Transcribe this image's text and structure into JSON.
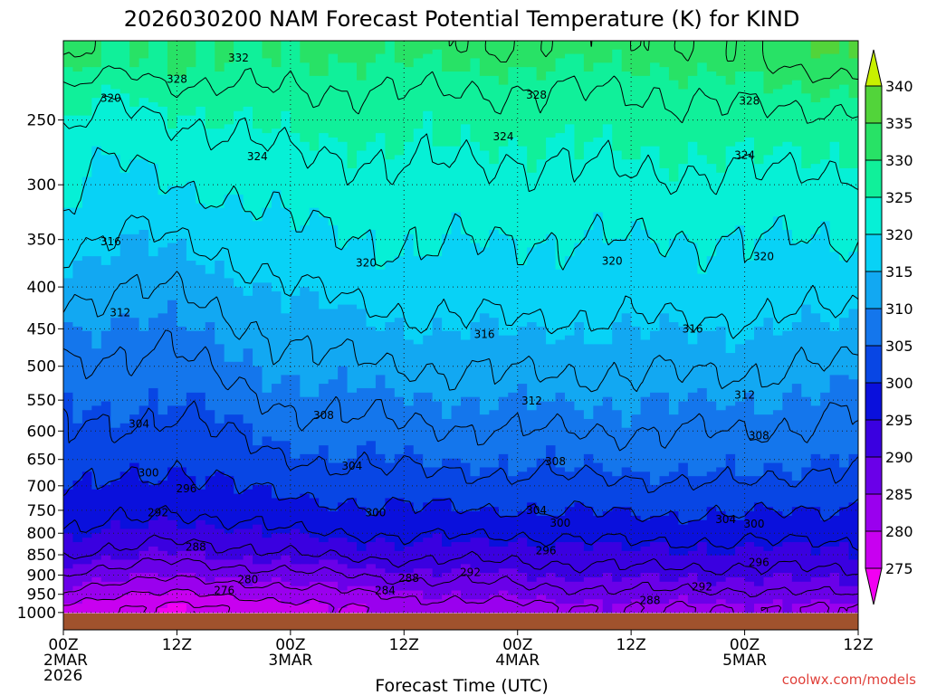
{
  "chart_data": {
    "type": "heatmap",
    "title": "2026030200 NAM Forecast Potential Temperature (K) for KIND",
    "xlabel": "Forecast Time (UTC)",
    "ylabel": "",
    "credit": "coolwx.com/models",
    "x_range_hours": [
      0,
      84
    ],
    "y_range_hpa": [
      200,
      1050
    ],
    "surface_pressure_hpa": 1000,
    "x_ticks": [
      {
        "hour": 0,
        "lines": [
          "00Z",
          "2MAR",
          "2026"
        ]
      },
      {
        "hour": 12,
        "lines": [
          "12Z"
        ]
      },
      {
        "hour": 24,
        "lines": [
          "00Z",
          "3MAR"
        ]
      },
      {
        "hour": 36,
        "lines": [
          "12Z"
        ]
      },
      {
        "hour": 48,
        "lines": [
          "00Z",
          "4MAR"
        ]
      },
      {
        "hour": 60,
        "lines": [
          "12Z"
        ]
      },
      {
        "hour": 72,
        "lines": [
          "00Z",
          "5MAR"
        ]
      },
      {
        "hour": 84,
        "lines": [
          "12Z"
        ]
      }
    ],
    "y_ticks": [
      250,
      300,
      350,
      400,
      450,
      500,
      550,
      600,
      650,
      700,
      750,
      800,
      850,
      900,
      950,
      1000
    ],
    "colorbar": {
      "levels": [
        275,
        280,
        285,
        290,
        295,
        300,
        305,
        310,
        315,
        320,
        325,
        330,
        335,
        340
      ],
      "tick_labels": [
        "275",
        "280",
        "285",
        "290",
        "295",
        "300",
        "305",
        "310",
        "315",
        "320",
        "325",
        "330",
        "335",
        "340"
      ],
      "colors": [
        "#f200f2",
        "#c800f0",
        "#9a00ee",
        "#6a00e8",
        "#3a00e0",
        "#0a10dc",
        "#0846e4",
        "#1476ec",
        "#12a8f2",
        "#08d2f6",
        "#06f0d6",
        "#10f09a",
        "#28e266",
        "#52d43a",
        "#8ae020",
        "#c8f000"
      ]
    },
    "contour_levels": [
      276,
      280,
      284,
      288,
      292,
      296,
      300,
      304,
      308,
      312,
      316,
      320,
      324,
      328,
      332
    ],
    "profiles": [
      {
        "hour": 0,
        "levels": [
          {
            "p": 985,
            "t": 279
          },
          {
            "p": 940,
            "t": 284
          },
          {
            "p": 880,
            "t": 289
          },
          {
            "p": 840,
            "t": 293
          },
          {
            "p": 790,
            "t": 296
          },
          {
            "p": 720,
            "t": 300
          },
          {
            "p": 640,
            "t": 303
          },
          {
            "p": 560,
            "t": 305
          },
          {
            "p": 470,
            "t": 309
          },
          {
            "p": 400,
            "t": 313
          },
          {
            "p": 330,
            "t": 319
          },
          {
            "p": 270,
            "t": 322
          },
          {
            "p": 230,
            "t": 328
          },
          {
            "p": 205,
            "t": 334
          }
        ]
      },
      {
        "hour": 6,
        "levels": [
          {
            "p": 985,
            "t": 276
          },
          {
            "p": 950,
            "t": 280
          },
          {
            "p": 900,
            "t": 286
          },
          {
            "p": 840,
            "t": 292
          },
          {
            "p": 780,
            "t": 296
          },
          {
            "p": 710,
            "t": 299
          },
          {
            "p": 620,
            "t": 303
          },
          {
            "p": 530,
            "t": 306
          },
          {
            "p": 440,
            "t": 310
          },
          {
            "p": 360,
            "t": 315
          },
          {
            "p": 280,
            "t": 320
          },
          {
            "p": 230,
            "t": 325
          },
          {
            "p": 210,
            "t": 330
          }
        ]
      },
      {
        "hour": 12,
        "levels": [
          {
            "p": 985,
            "t": 275
          },
          {
            "p": 955,
            "t": 279
          },
          {
            "p": 900,
            "t": 285
          },
          {
            "p": 840,
            "t": 290
          },
          {
            "p": 770,
            "t": 295
          },
          {
            "p": 690,
            "t": 299
          },
          {
            "p": 620,
            "t": 302
          },
          {
            "p": 530,
            "t": 306
          },
          {
            "p": 440,
            "t": 310
          },
          {
            "p": 370,
            "t": 314
          },
          {
            "p": 300,
            "t": 320
          },
          {
            "p": 250,
            "t": 324
          },
          {
            "p": 215,
            "t": 330
          }
        ]
      },
      {
        "hour": 24,
        "levels": [
          {
            "p": 985,
            "t": 278
          },
          {
            "p": 950,
            "t": 282
          },
          {
            "p": 900,
            "t": 287
          },
          {
            "p": 850,
            "t": 292
          },
          {
            "p": 780,
            "t": 297
          },
          {
            "p": 690,
            "t": 302
          },
          {
            "p": 610,
            "t": 306
          },
          {
            "p": 520,
            "t": 310
          },
          {
            "p": 430,
            "t": 314
          },
          {
            "p": 370,
            "t": 318
          },
          {
            "p": 300,
            "t": 322
          },
          {
            "p": 250,
            "t": 326
          },
          {
            "p": 210,
            "t": 330
          }
        ]
      },
      {
        "hour": 36,
        "levels": [
          {
            "p": 985,
            "t": 282
          },
          {
            "p": 945,
            "t": 285
          },
          {
            "p": 900,
            "t": 289
          },
          {
            "p": 850,
            "t": 293
          },
          {
            "p": 780,
            "t": 298
          },
          {
            "p": 690,
            "t": 303
          },
          {
            "p": 610,
            "t": 307
          },
          {
            "p": 520,
            "t": 311
          },
          {
            "p": 450,
            "t": 315
          },
          {
            "p": 380,
            "t": 319
          },
          {
            "p": 300,
            "t": 323
          },
          {
            "p": 240,
            "t": 327
          },
          {
            "p": 205,
            "t": 331
          }
        ]
      },
      {
        "hour": 48,
        "levels": [
          {
            "p": 985,
            "t": 283
          },
          {
            "p": 940,
            "t": 287
          },
          {
            "p": 880,
            "t": 291
          },
          {
            "p": 820,
            "t": 295
          },
          {
            "p": 750,
            "t": 300
          },
          {
            "p": 660,
            "t": 305
          },
          {
            "p": 580,
            "t": 309
          },
          {
            "p": 490,
            "t": 313
          },
          {
            "p": 420,
            "t": 317
          },
          {
            "p": 350,
            "t": 320
          },
          {
            "p": 280,
            "t": 324
          },
          {
            "p": 230,
            "t": 328
          },
          {
            "p": 205,
            "t": 332
          }
        ]
      },
      {
        "hour": 60,
        "levels": [
          {
            "p": 985,
            "t": 284
          },
          {
            "p": 940,
            "t": 288
          },
          {
            "p": 880,
            "t": 292
          },
          {
            "p": 820,
            "t": 296
          },
          {
            "p": 760,
            "t": 300
          },
          {
            "p": 670,
            "t": 305
          },
          {
            "p": 580,
            "t": 309
          },
          {
            "p": 490,
            "t": 313
          },
          {
            "p": 420,
            "t": 317
          },
          {
            "p": 350,
            "t": 320
          },
          {
            "p": 290,
            "t": 324
          },
          {
            "p": 230,
            "t": 328
          },
          {
            "p": 205,
            "t": 331
          }
        ]
      },
      {
        "hour": 72,
        "levels": [
          {
            "p": 985,
            "t": 284
          },
          {
            "p": 940,
            "t": 288
          },
          {
            "p": 880,
            "t": 292
          },
          {
            "p": 820,
            "t": 296
          },
          {
            "p": 760,
            "t": 300
          },
          {
            "p": 680,
            "t": 305
          },
          {
            "p": 580,
            "t": 309
          },
          {
            "p": 490,
            "t": 313
          },
          {
            "p": 420,
            "t": 317
          },
          {
            "p": 350,
            "t": 320
          },
          {
            "p": 290,
            "t": 324
          },
          {
            "p": 240,
            "t": 328
          },
          {
            "p": 210,
            "t": 332
          }
        ]
      },
      {
        "hour": 84,
        "levels": [
          {
            "p": 985,
            "t": 284
          },
          {
            "p": 940,
            "t": 289
          },
          {
            "p": 870,
            "t": 293
          },
          {
            "p": 800,
            "t": 297
          },
          {
            "p": 720,
            "t": 301
          },
          {
            "p": 620,
            "t": 306
          },
          {
            "p": 530,
            "t": 310
          },
          {
            "p": 440,
            "t": 315
          },
          {
            "p": 370,
            "t": 319
          },
          {
            "p": 300,
            "t": 323
          },
          {
            "p": 250,
            "t": 327
          },
          {
            "p": 220,
            "t": 332
          },
          {
            "p": 205,
            "t": 336
          }
        ]
      }
    ],
    "contour_labels": [
      {
        "text": "332",
        "hour": 18.5,
        "p": 210
      },
      {
        "text": "328",
        "hour": 12.0,
        "p": 223
      },
      {
        "text": "320",
        "hour": 5.0,
        "p": 235
      },
      {
        "text": "324",
        "hour": 20.5,
        "p": 277
      },
      {
        "text": "328",
        "hour": 50.0,
        "p": 233
      },
      {
        "text": "324",
        "hour": 46.5,
        "p": 262
      },
      {
        "text": "328",
        "hour": 72.5,
        "p": 237
      },
      {
        "text": "324",
        "hour": 72.0,
        "p": 276
      },
      {
        "text": "316",
        "hour": 5.0,
        "p": 352
      },
      {
        "text": "320",
        "hour": 32.0,
        "p": 374
      },
      {
        "text": "320",
        "hour": 58.0,
        "p": 372
      },
      {
        "text": "320",
        "hour": 74.0,
        "p": 367
      },
      {
        "text": "312",
        "hour": 6.0,
        "p": 430
      },
      {
        "text": "316",
        "hour": 44.5,
        "p": 457
      },
      {
        "text": "316",
        "hour": 66.5,
        "p": 450
      },
      {
        "text": "312",
        "hour": 49.5,
        "p": 551
      },
      {
        "text": "312",
        "hour": 72.0,
        "p": 542
      },
      {
        "text": "304",
        "hour": 8.0,
        "p": 588
      },
      {
        "text": "308",
        "hour": 27.5,
        "p": 574
      },
      {
        "text": "308",
        "hour": 73.5,
        "p": 608
      },
      {
        "text": "304",
        "hour": 30.5,
        "p": 662
      },
      {
        "text": "308",
        "hour": 52.0,
        "p": 654
      },
      {
        "text": "300",
        "hour": 9.0,
        "p": 675
      },
      {
        "text": "296",
        "hour": 13.0,
        "p": 706
      },
      {
        "text": "292",
        "hour": 10.0,
        "p": 755
      },
      {
        "text": "300",
        "hour": 33.0,
        "p": 755
      },
      {
        "text": "304",
        "hour": 50.0,
        "p": 750
      },
      {
        "text": "300",
        "hour": 52.5,
        "p": 777
      },
      {
        "text": "304",
        "hour": 70.0,
        "p": 770
      },
      {
        "text": "300",
        "hour": 73.0,
        "p": 779
      },
      {
        "text": "288",
        "hour": 14.0,
        "p": 832
      },
      {
        "text": "296",
        "hour": 51.0,
        "p": 840
      },
      {
        "text": "296",
        "hour": 73.5,
        "p": 869
      },
      {
        "text": "292",
        "hour": 43.0,
        "p": 893
      },
      {
        "text": "288",
        "hour": 36.5,
        "p": 908
      },
      {
        "text": "280",
        "hour": 19.5,
        "p": 912
      },
      {
        "text": "292",
        "hour": 67.5,
        "p": 930
      },
      {
        "text": "276",
        "hour": 17.0,
        "p": 940
      },
      {
        "text": "284",
        "hour": 34.0,
        "p": 940
      },
      {
        "text": "288",
        "hour": 62.0,
        "p": 966
      }
    ]
  }
}
